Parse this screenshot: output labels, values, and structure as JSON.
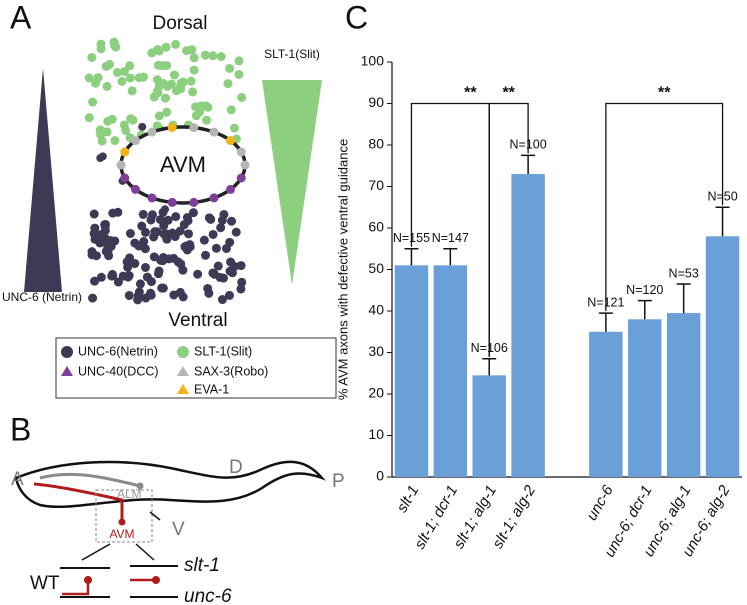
{
  "panels": {
    "a": {
      "label": "A",
      "dorsal": "Dorsal",
      "ventral": "Ventral",
      "cell": "AVM",
      "slit_gradient": "SLT-1(Slit)",
      "netrin_gradient": "UNC-6 (Netrin)",
      "legend": [
        "UNC-6(Netrin)",
        "SLT-1(Slit)",
        "UNC-40(DCC)",
        "SAX-3(Robo)",
        "EVA-1"
      ]
    },
    "b": {
      "label": "B",
      "anterior": "A",
      "posterior": "P",
      "dorsal": "D",
      "ventral": "V",
      "alm": "ALM",
      "avm": "AVM",
      "wt": "WT",
      "mutant1": "slt-1",
      "mutant2": "unc-6"
    }
  },
  "chart_data": {
    "type": "bar",
    "panel_label": "C",
    "y_label": "% AVM axons with defective ventral guidance",
    "categories": [
      "slt-1",
      "slt-1; dcr-1",
      "slt-1; alg-1",
      "slt-1; alg-2",
      null,
      "unc-6",
      "unc-6; dcr-1",
      "unc-6; alg-1",
      "unc-6; alg-2"
    ],
    "values": [
      51,
      51,
      24.5,
      73,
      null,
      35,
      38,
      39.5,
      58
    ],
    "errors": [
      4,
      4,
      4,
      4.5,
      null,
      4.5,
      4.5,
      7,
      7
    ],
    "n_labels": [
      "N=155",
      "N=147",
      "N=106",
      "N=100",
      null,
      "N=121",
      "N=120",
      "N=53",
      "N=50"
    ],
    "comparisons": [
      {
        "from": 0,
        "to": 2,
        "label": "**"
      },
      {
        "from": 2,
        "to": 3,
        "label": "**"
      },
      {
        "from": 5,
        "to": 8,
        "label": "**"
      }
    ],
    "color": "#6a9fd8",
    "ylim": [
      0,
      100
    ],
    "yticks": [
      0,
      10,
      20,
      30,
      40,
      50,
      60,
      70,
      80,
      90,
      100
    ]
  }
}
